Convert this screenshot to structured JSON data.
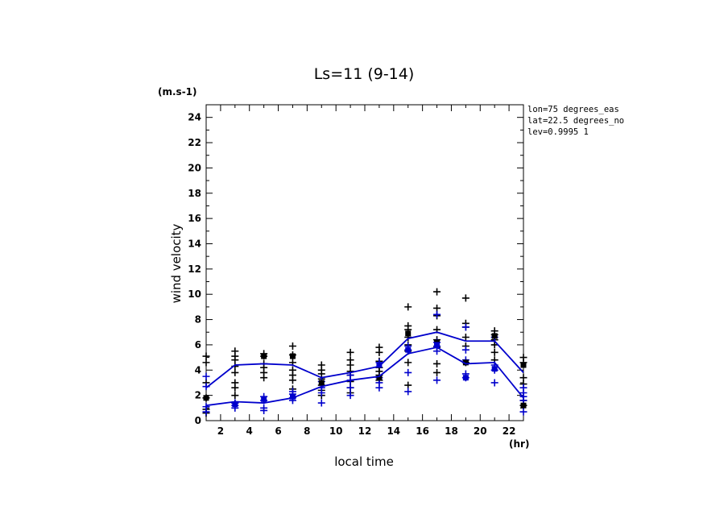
{
  "chart_data": {
    "type": "line",
    "title": "Ls=11 (9-14)",
    "xlabel": "local time",
    "ylabel": "wind velocity",
    "x_unit": "(hr)",
    "y_unit": "(m.s-1)",
    "xlim": [
      1,
      23
    ],
    "ylim": [
      0,
      25
    ],
    "x_ticks": [
      2,
      4,
      6,
      8,
      10,
      12,
      14,
      16,
      18,
      20,
      22
    ],
    "y_ticks": [
      0,
      2,
      4,
      6,
      8,
      10,
      12,
      14,
      16,
      18,
      20,
      22,
      24
    ],
    "annotations": [
      "lon=75 degrees_eas",
      "lat=22.5 degrees_no",
      "lev=0.9995 1"
    ],
    "x": [
      1,
      3,
      5,
      7,
      9,
      11,
      13,
      15,
      17,
      19,
      21,
      23
    ],
    "series": [
      {
        "color": "#0000cc",
        "marker": "line",
        "values": [
          2.6,
          4.4,
          4.5,
          4.4,
          3.4,
          3.8,
          4.3,
          6.5,
          7.0,
          6.3,
          6.3,
          3.8
        ]
      },
      {
        "color": "#0000cc",
        "marker": "line",
        "values": [
          1.2,
          1.5,
          1.4,
          1.8,
          2.7,
          3.2,
          3.5,
          5.3,
          5.8,
          4.5,
          4.6,
          1.8
        ]
      },
      {
        "color": "#000000",
        "marker": "cross",
        "points": [
          [
            1,
            5.1
          ],
          [
            1,
            4.6
          ],
          [
            1,
            3.0
          ],
          [
            1,
            1.8
          ],
          [
            1,
            0.9
          ],
          [
            1,
            0.6
          ],
          [
            3,
            5.5
          ],
          [
            3,
            5.1
          ],
          [
            3,
            4.8
          ],
          [
            3,
            4.3
          ],
          [
            3,
            3.8
          ],
          [
            3,
            3.0
          ],
          [
            3,
            2.6
          ],
          [
            3,
            2.0
          ],
          [
            3,
            1.4
          ],
          [
            5,
            5.3
          ],
          [
            5,
            5.1
          ],
          [
            5,
            4.5
          ],
          [
            5,
            4.2
          ],
          [
            5,
            3.8
          ],
          [
            5,
            3.4
          ],
          [
            7,
            5.9
          ],
          [
            7,
            5.2
          ],
          [
            7,
            4.6
          ],
          [
            7,
            4.0
          ],
          [
            7,
            3.6
          ],
          [
            7,
            3.2
          ],
          [
            7,
            2.5
          ],
          [
            9,
            4.4
          ],
          [
            9,
            4.0
          ],
          [
            9,
            3.7
          ],
          [
            9,
            3.3
          ],
          [
            9,
            2.8
          ],
          [
            9,
            2.4
          ],
          [
            9,
            2.0
          ],
          [
            11,
            5.4
          ],
          [
            11,
            4.8
          ],
          [
            11,
            4.4
          ],
          [
            11,
            3.9
          ],
          [
            11,
            3.6
          ],
          [
            11,
            3.1
          ],
          [
            11,
            2.6
          ],
          [
            11,
            2.2
          ],
          [
            13,
            5.8
          ],
          [
            13,
            5.4
          ],
          [
            13,
            4.7
          ],
          [
            13,
            4.2
          ],
          [
            13,
            3.9
          ],
          [
            13,
            3.6
          ],
          [
            13,
            3.2
          ],
          [
            15,
            9.0
          ],
          [
            15,
            7.5
          ],
          [
            15,
            7.2
          ],
          [
            15,
            6.6
          ],
          [
            15,
            6.0
          ],
          [
            15,
            5.5
          ],
          [
            15,
            4.6
          ],
          [
            15,
            2.8
          ],
          [
            17,
            10.2
          ],
          [
            17,
            8.9
          ],
          [
            17,
            8.3
          ],
          [
            17,
            7.2
          ],
          [
            17,
            6.4
          ],
          [
            17,
            5.8
          ],
          [
            17,
            4.5
          ],
          [
            17,
            3.8
          ],
          [
            19,
            9.7
          ],
          [
            19,
            7.7
          ],
          [
            19,
            7.4
          ],
          [
            19,
            6.6
          ],
          [
            19,
            5.9
          ],
          [
            19,
            4.6
          ],
          [
            21,
            7.1
          ],
          [
            21,
            6.8
          ],
          [
            21,
            6.4
          ],
          [
            21,
            6.0
          ],
          [
            21,
            5.4
          ],
          [
            21,
            4.8
          ],
          [
            23,
            5.0
          ],
          [
            23,
            4.6
          ],
          [
            23,
            3.4
          ],
          [
            23,
            2.9
          ],
          [
            23,
            1.6
          ],
          [
            23,
            1.2
          ]
        ]
      },
      {
        "color": "#0000cc",
        "marker": "cross",
        "points": [
          [
            1,
            3.5
          ],
          [
            1,
            2.7
          ],
          [
            1,
            1.1
          ],
          [
            1,
            0.7
          ],
          [
            3,
            1.4
          ],
          [
            3,
            1.2
          ],
          [
            3,
            1.0
          ],
          [
            5,
            1.9
          ],
          [
            5,
            1.6
          ],
          [
            5,
            1.0
          ],
          [
            5,
            0.8
          ],
          [
            7,
            2.3
          ],
          [
            7,
            2.1
          ],
          [
            7,
            1.8
          ],
          [
            7,
            1.6
          ],
          [
            9,
            3.1
          ],
          [
            9,
            2.6
          ],
          [
            9,
            2.2
          ],
          [
            9,
            1.4
          ],
          [
            11,
            3.6
          ],
          [
            11,
            3.2
          ],
          [
            11,
            2.6
          ],
          [
            11,
            2.0
          ],
          [
            13,
            4.6
          ],
          [
            13,
            3.4
          ],
          [
            13,
            3.0
          ],
          [
            13,
            2.6
          ],
          [
            15,
            5.9
          ],
          [
            15,
            5.6
          ],
          [
            15,
            3.8
          ],
          [
            15,
            2.3
          ],
          [
            17,
            8.4
          ],
          [
            17,
            6.2
          ],
          [
            17,
            5.9
          ],
          [
            17,
            5.5
          ],
          [
            17,
            3.2
          ],
          [
            19,
            7.4
          ],
          [
            19,
            5.6
          ],
          [
            19,
            4.8
          ],
          [
            19,
            3.7
          ],
          [
            19,
            3.4
          ],
          [
            21,
            6.6
          ],
          [
            21,
            4.4
          ],
          [
            21,
            4.0
          ],
          [
            21,
            3.0
          ],
          [
            23,
            2.6
          ],
          [
            23,
            2.2
          ],
          [
            23,
            1.9
          ],
          [
            23,
            1.6
          ],
          [
            23,
            0.7
          ]
        ]
      }
    ],
    "square_markers": [
      {
        "color": "#000000",
        "points": [
          [
            1,
            1.8
          ],
          [
            5,
            5.1
          ],
          [
            7,
            5.1
          ],
          [
            9,
            3.0
          ],
          [
            13,
            3.4
          ],
          [
            15,
            6.9
          ],
          [
            17,
            6.2
          ],
          [
            19,
            4.6
          ],
          [
            21,
            6.7
          ],
          [
            23,
            4.4
          ],
          [
            23,
            1.2
          ]
        ]
      },
      {
        "color": "#0000cc",
        "points": [
          [
            3,
            1.3
          ],
          [
            5,
            1.7
          ],
          [
            7,
            1.9
          ],
          [
            13,
            4.4
          ],
          [
            15,
            5.6
          ],
          [
            17,
            6.0
          ],
          [
            19,
            3.4
          ],
          [
            21,
            4.1
          ]
        ]
      }
    ]
  }
}
